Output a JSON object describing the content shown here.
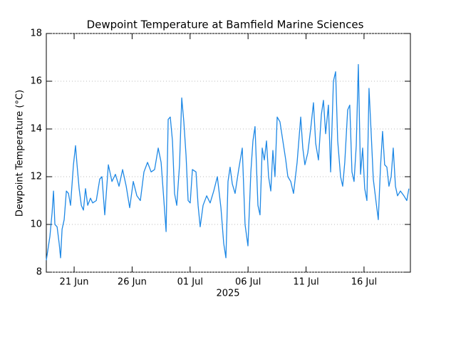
{
  "chart_data": {
    "type": "line",
    "title": "Dewpoint Temperature at Bamfield Marine Sciences",
    "ylabel": "Dewpoint Temperature (°C)",
    "xlabel": "2025",
    "xlim": [
      169.6,
      201.0
    ],
    "xticks": [
      {
        "value": 172,
        "label": "21 Jun"
      },
      {
        "value": 177,
        "label": "26 Jun"
      },
      {
        "value": 182,
        "label": "01 Jul"
      },
      {
        "value": 187,
        "label": "06 Jul"
      },
      {
        "value": 192,
        "label": "11 Jul"
      },
      {
        "value": 197,
        "label": "16 Jul"
      }
    ],
    "ylim": [
      8,
      18
    ],
    "yticks": [
      8,
      10,
      12,
      14,
      16,
      18
    ],
    "grid": true,
    "series": [
      {
        "color": "#1e88e5",
        "x": [
          169.6,
          169.91,
          170.1,
          170.22,
          170.34,
          170.53,
          170.71,
          170.83,
          170.96,
          171.14,
          171.33,
          171.51,
          171.69,
          171.94,
          172.12,
          172.25,
          172.43,
          172.62,
          172.8,
          172.98,
          173.17,
          173.41,
          173.6,
          173.91,
          174.21,
          174.4,
          174.64,
          174.95,
          175.26,
          175.56,
          175.87,
          176.18,
          176.49,
          176.79,
          177.1,
          177.41,
          177.71,
          178.02,
          178.33,
          178.64,
          178.94,
          179.25,
          179.5,
          179.74,
          179.93,
          180.11,
          180.29,
          180.48,
          180.66,
          180.85,
          181.09,
          181.28,
          181.46,
          181.65,
          181.83,
          182.01,
          182.2,
          182.51,
          182.69,
          182.87,
          183.12,
          183.43,
          183.73,
          184.04,
          184.35,
          184.66,
          184.9,
          185.09,
          185.27,
          185.45,
          185.64,
          185.88,
          186.19,
          186.5,
          186.74,
          186.99,
          187.24,
          187.42,
          187.6,
          187.85,
          188.03,
          188.22,
          188.4,
          188.59,
          188.77,
          188.96,
          189.14,
          189.32,
          189.51,
          189.75,
          190.0,
          190.25,
          190.43,
          190.68,
          190.92,
          191.23,
          191.54,
          191.72,
          191.9,
          192.15,
          192.4,
          192.64,
          192.83,
          193.07,
          193.32,
          193.5,
          193.69,
          193.93,
          194.12,
          194.36,
          194.55,
          194.73,
          194.98,
          195.16,
          195.34,
          195.59,
          195.77,
          195.96,
          196.14,
          196.33,
          196.51,
          196.7,
          196.88,
          197.06,
          197.25,
          197.43,
          197.62,
          197.8,
          198.05,
          198.23,
          198.42,
          198.6,
          198.78,
          198.97,
          199.15,
          199.34,
          199.52,
          199.71,
          199.89,
          200.14,
          200.44,
          200.69,
          200.87
        ],
        "values": [
          8.5,
          9.5,
          10.5,
          11.4,
          10,
          9.9,
          9.2,
          8.6,
          9.8,
          10.2,
          11.4,
          11.3,
          10.8,
          12.5,
          13.3,
          12.5,
          11.5,
          10.8,
          10.6,
          11.5,
          10.8,
          11.1,
          10.9,
          11,
          11.9,
          12,
          10.4,
          12.5,
          11.8,
          12.1,
          11.6,
          12.3,
          11.6,
          10.7,
          11.8,
          11.2,
          11,
          12.2,
          12.6,
          12.2,
          12.3,
          13.2,
          12.6,
          11,
          9.7,
          14.4,
          14.5,
          13.5,
          11.3,
          10.8,
          12.5,
          15.3,
          14.3,
          12.9,
          11.0,
          10.9,
          12.3,
          12.2,
          10.8,
          9.9,
          10.8,
          11.2,
          10.9,
          11.4,
          12.0,
          10.7,
          9.2,
          8.6,
          11.8,
          12.4,
          11.7,
          11.3,
          12.3,
          13.2,
          10.0,
          9.1,
          12.2,
          13.5,
          14.1,
          10.8,
          10.4,
          13.2,
          12.7,
          13.5,
          12.0,
          11.4,
          13.1,
          12.0,
          14.5,
          14.3,
          13.5,
          12.7,
          12.0,
          11.8,
          11.3,
          12.6,
          14.5,
          13.2,
          12.5,
          13.0,
          14.0,
          15.1,
          13.4,
          12.7,
          14.6,
          15.2,
          13.8,
          15.0,
          12.2,
          16.0,
          16.4,
          13.5,
          12.0,
          11.6,
          12.6,
          14.8,
          15.0,
          12.2,
          11.8,
          13.3,
          16.7,
          12.1,
          13.2,
          11.5,
          11.0,
          15.7,
          13.8,
          11.9,
          10.9,
          10.2,
          12.4,
          13.9,
          12.5,
          12.4,
          11.6,
          12.0,
          13.2,
          11.6,
          11.2,
          11.4,
          11.2,
          11.0,
          11.5
        ]
      }
    ]
  }
}
